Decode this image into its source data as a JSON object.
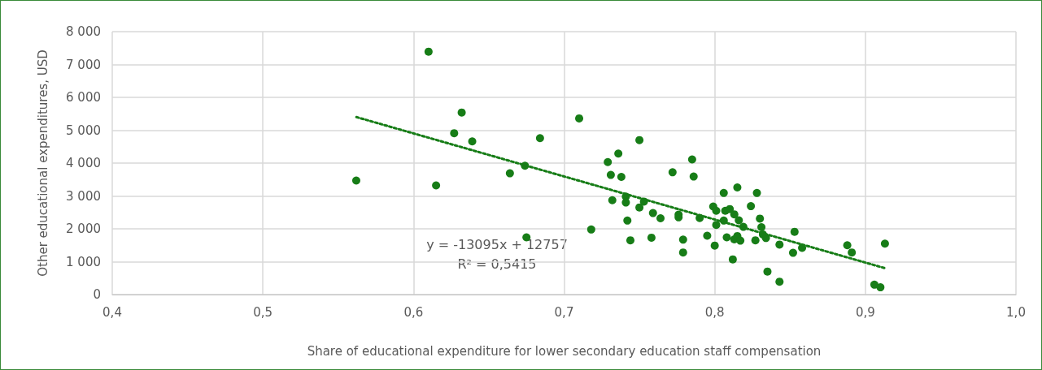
{
  "chart_data": {
    "type": "scatter",
    "xlabel": "Share of educational expenditure for lower secondary education staff compensation",
    "ylabel": "Other educational expenditures, USD",
    "xlim": [
      0.4,
      1.0
    ],
    "xticks": [
      {
        "value": 0.4,
        "label": "0,4"
      },
      {
        "value": 0.5,
        "label": "0,5"
      },
      {
        "value": 0.6,
        "label": "0,6"
      },
      {
        "value": 0.7,
        "label": "0,7"
      },
      {
        "value": 0.8,
        "label": "0,8"
      },
      {
        "value": 0.9,
        "label": "0,9"
      },
      {
        "value": 1.0,
        "label": "1,0"
      }
    ],
    "ylim": [
      0,
      8000
    ],
    "yticks": [
      {
        "value": 0,
        "label": "0"
      },
      {
        "value": 1000,
        "label": "1 000"
      },
      {
        "value": 2000,
        "label": "2 000"
      },
      {
        "value": 3000,
        "label": "3 000"
      },
      {
        "value": 4000,
        "label": "4 000"
      },
      {
        "value": 5000,
        "label": "5 000"
      },
      {
        "value": 6000,
        "label": "6 000"
      },
      {
        "value": 7000,
        "label": "7 000"
      },
      {
        "value": 8000,
        "label": "8 000"
      }
    ],
    "grid": true,
    "marker": "circle",
    "annotations": [
      "y = -13095x + 12757",
      "R² = 0,5415"
    ],
    "series": [
      {
        "color": "#177d17",
        "x": [
          0.61,
          0.632,
          0.627,
          0.639,
          0.562,
          0.615,
          0.71,
          0.684,
          0.664,
          0.674,
          0.675,
          0.718,
          0.729,
          0.736,
          0.731,
          0.738,
          0.732,
          0.741,
          0.741,
          0.742,
          0.744,
          0.75,
          0.772,
          0.785,
          0.786,
          0.753,
          0.75,
          0.759,
          0.764,
          0.758,
          0.776,
          0.776,
          0.779,
          0.779,
          0.79,
          0.795,
          0.8,
          0.799,
          0.801,
          0.801,
          0.806,
          0.815,
          0.807,
          0.81,
          0.806,
          0.813,
          0.816,
          0.819,
          0.808,
          0.813,
          0.815,
          0.817,
          0.812,
          0.828,
          0.824,
          0.83,
          0.831,
          0.827,
          0.832,
          0.834,
          0.835,
          0.843,
          0.843,
          0.913,
          0.906,
          0.91,
          0.888,
          0.891,
          0.853,
          0.852,
          0.858
        ],
        "values": [
          7390,
          5540,
          4910,
          4660,
          3470,
          3320,
          5360,
          4760,
          3690,
          3920,
          1740,
          1980,
          4030,
          4290,
          3640,
          3580,
          2870,
          2980,
          2800,
          2250,
          1650,
          4700,
          3720,
          4110,
          3590,
          2830,
          2650,
          2480,
          2320,
          1730,
          2430,
          2350,
          1670,
          1280,
          2330,
          1790,
          1490,
          2680,
          2550,
          2120,
          3090,
          3260,
          2550,
          2600,
          2250,
          2440,
          2260,
          2060,
          1740,
          1680,
          1780,
          1640,
          1070,
          3090,
          2690,
          2310,
          2050,
          1650,
          1830,
          1720,
          700,
          1520,
          390,
          1550,
          300,
          220,
          1500,
          1280,
          1910,
          1270,
          1420
        ]
      },
      {
        "type": "line",
        "color": "#177d17",
        "line_style": "dotted",
        "marker": "none",
        "x": [
          0.5621,
          0.9132
        ],
        "values": [
          5400,
          800
        ]
      }
    ]
  }
}
